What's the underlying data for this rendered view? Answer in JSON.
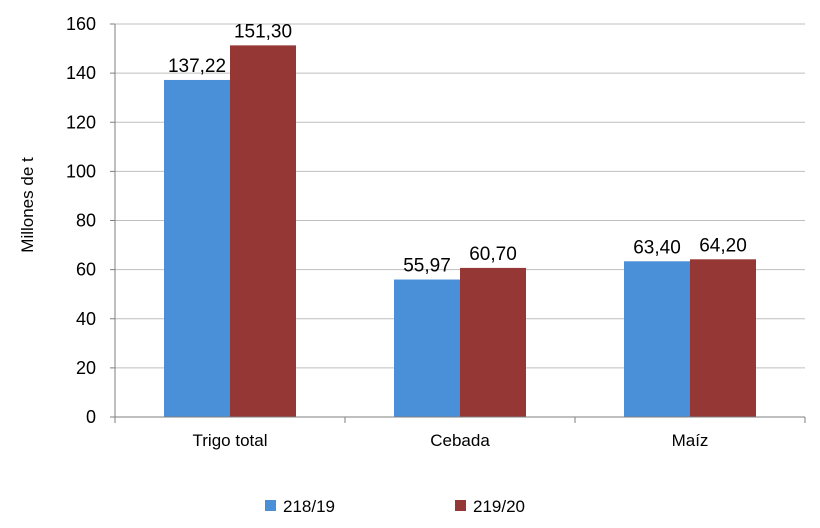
{
  "chart_data": {
    "type": "bar",
    "categories": [
      "Trigo total",
      "Cebada",
      "Maíz"
    ],
    "series": [
      {
        "name": "218/19",
        "color": "#4a90d9",
        "values": [
          137.22,
          55.97,
          63.4
        ],
        "labels": [
          "137,22",
          "55,97",
          "63,40"
        ]
      },
      {
        "name": "219/20",
        "color": "#953735",
        "values": [
          151.3,
          60.7,
          64.2
        ],
        "labels": [
          "151,30",
          "60,70",
          "64,20"
        ]
      }
    ],
    "ylabel": "Millones de t",
    "ylim": [
      0,
      160
    ],
    "yticks": [
      0,
      20,
      40,
      60,
      80,
      100,
      120,
      140,
      160
    ],
    "grid": true,
    "gridColor": "#bfbfbf",
    "legend": "bottom"
  }
}
